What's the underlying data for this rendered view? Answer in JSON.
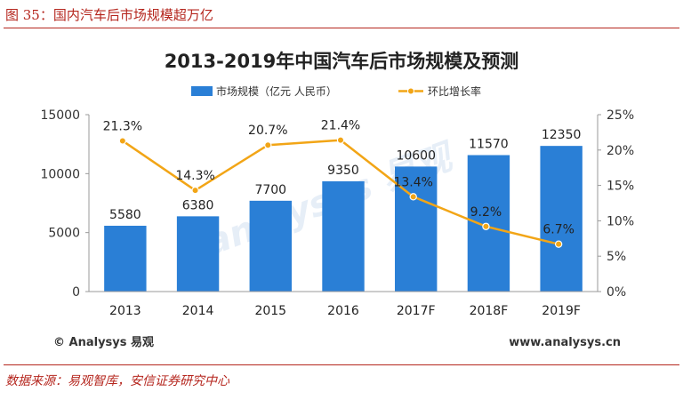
{
  "figure": {
    "caption": "图 35：国内汽车后市场规模超万亿",
    "source": "数据来源：易观智库，安信证券研究中心"
  },
  "branding": {
    "logo_text": "© Analysys 易观",
    "url": "www.analysys.cn",
    "watermark": "analysys 易观"
  },
  "colors": {
    "bar": "#2a7fd6",
    "line": "#f2a516",
    "accent": "#b5261e"
  },
  "chart_data": {
    "type": "bar",
    "title": "2013-2019年中国汽车后市场规模及预测",
    "categories": [
      "2013",
      "2014",
      "2015",
      "2016",
      "2017F",
      "2018F",
      "2019F"
    ],
    "series": [
      {
        "name": "市场规模（亿元 人民币）",
        "type": "bar",
        "axis": "left",
        "values": [
          5580,
          6380,
          7700,
          9350,
          10600,
          11570,
          12350
        ],
        "labels": [
          "5580",
          "6380",
          "7700",
          "9350",
          "10600",
          "11570",
          "12350"
        ]
      },
      {
        "name": "环比增长率",
        "type": "line",
        "axis": "right",
        "values": [
          21.3,
          14.3,
          20.7,
          21.4,
          13.4,
          9.2,
          6.7
        ],
        "labels": [
          "21.3%",
          "14.3%",
          "20.7%",
          "21.4%",
          "13.4%",
          "9.2%",
          "6.7%"
        ]
      }
    ],
    "left_axis": {
      "min": 0,
      "max": 15000,
      "ticks": [
        0,
        5000,
        10000,
        15000
      ],
      "tick_labels": [
        "0",
        "5000",
        "10000",
        "15000"
      ]
    },
    "right_axis": {
      "min": 0,
      "max": 25,
      "ticks": [
        0,
        5,
        10,
        15,
        20,
        25
      ],
      "tick_labels": [
        "0%",
        "5%",
        "10%",
        "15%",
        "20%",
        "25%"
      ]
    },
    "grid": false,
    "legend": "top-center"
  }
}
